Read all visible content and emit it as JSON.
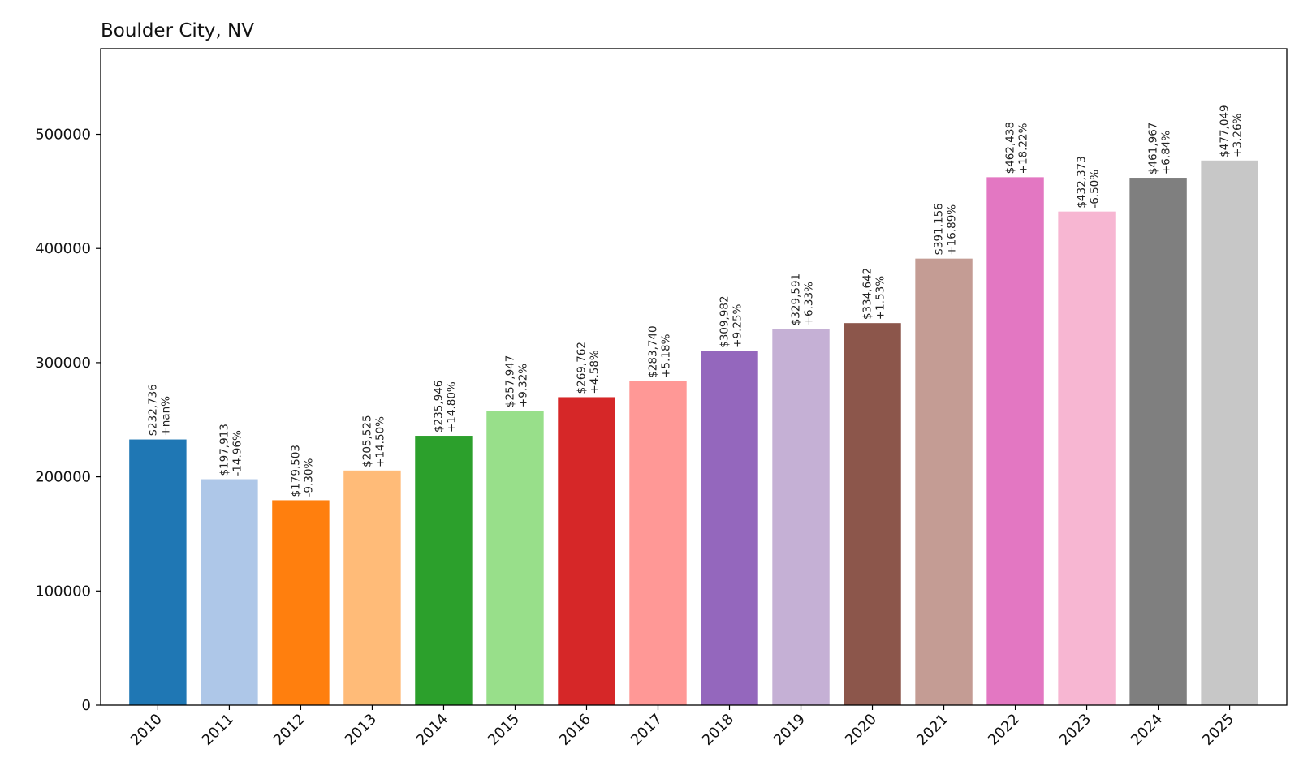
{
  "chart_data": {
    "type": "bar",
    "title": "Boulder City, NV",
    "xlabel": "",
    "ylabel": "",
    "ylim": [
      0,
      575000
    ],
    "yticks": [
      0,
      100000,
      200000,
      300000,
      400000,
      500000
    ],
    "grid": false,
    "categories": [
      "2010",
      "2011",
      "2012",
      "2013",
      "2014",
      "2015",
      "2016",
      "2017",
      "2018",
      "2019",
      "2020",
      "2021",
      "2022",
      "2023",
      "2024",
      "2025"
    ],
    "values": [
      232736,
      197913,
      179503,
      205525,
      235946,
      257947,
      269762,
      283740,
      309982,
      329591,
      334642,
      391156,
      462438,
      432373,
      461967,
      477049
    ],
    "value_labels": [
      "$232,736",
      "$197,913",
      "$179,503",
      "$205,525",
      "$235,946",
      "$257,947",
      "$269,762",
      "$283,740",
      "$309,982",
      "$329,591",
      "$334,642",
      "$391,156",
      "$462,438",
      "$432,373",
      "$461,967",
      "$477,049"
    ],
    "change_labels": [
      "+nan%",
      "-14.96%",
      "-9.30%",
      "+14.50%",
      "+14.80%",
      "+9.32%",
      "+4.58%",
      "+5.18%",
      "+9.25%",
      "+6.33%",
      "+1.53%",
      "+16.89%",
      "+18.22%",
      "-6.50%",
      "+6.84%",
      "+3.26%"
    ],
    "colors": [
      "#1f77b4",
      "#aec7e8",
      "#ff7f0e",
      "#ffbb78",
      "#2ca02c",
      "#98df8a",
      "#d62728",
      "#ff9896",
      "#9467bd",
      "#c5b0d5",
      "#8c564b",
      "#c49c94",
      "#e377c2",
      "#f7b6d2",
      "#7f7f7f",
      "#c7c7c7"
    ]
  }
}
